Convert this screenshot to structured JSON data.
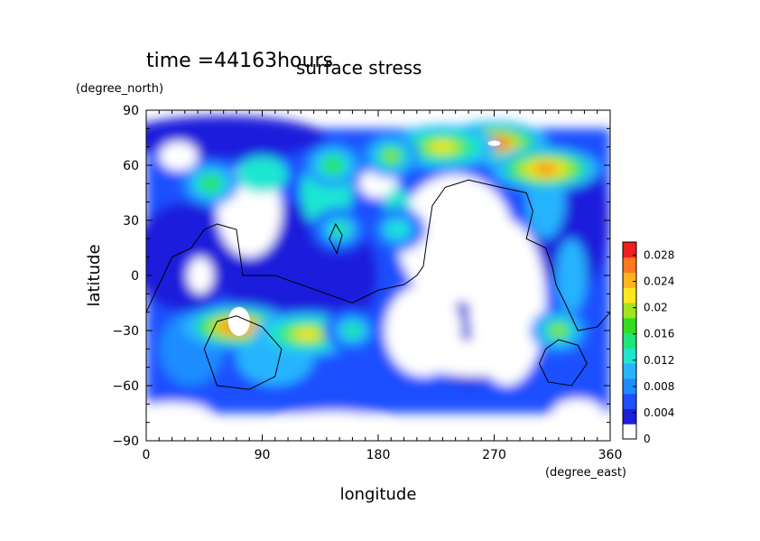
{
  "chart_data": {
    "type": "heatmap",
    "title": "surface stress",
    "subtitle": "time =44163hours",
    "xlabel": "longitude",
    "ylabel": "latitude",
    "x_unit": "(degree_east)",
    "y_unit": "(degree_north)",
    "xlim": [
      0,
      360
    ],
    "ylim": [
      -90,
      90
    ],
    "x_ticks": [
      "0",
      "90",
      "180",
      "270",
      "360"
    ],
    "y_ticks": [
      "90",
      "60",
      "30",
      "0",
      "−30",
      "−60",
      "−90"
    ],
    "colorbar": {
      "min": 0,
      "max": 0.03,
      "tick_labels": [
        "0",
        "0.004",
        "0.008",
        "0.012",
        "0.016",
        "0.02",
        "0.024",
        "0.028"
      ],
      "tick_values": [
        0,
        0.004,
        0.008,
        0.012,
        0.016,
        0.02,
        0.024,
        0.028
      ],
      "colors": [
        "#ffffff",
        "#1e1edc",
        "#1e50ff",
        "#1e8cff",
        "#28b4ff",
        "#1ee6d2",
        "#1ee678",
        "#32dc1e",
        "#a0e61e",
        "#ffe61e",
        "#ffb41e",
        "#ff781e",
        "#f01e1e"
      ]
    },
    "grid": false,
    "legend": "right",
    "features": [
      {
        "lon": 270,
        "lat": 72,
        "value": 0.028
      },
      {
        "lon": 230,
        "lat": 70,
        "value": 0.022
      },
      {
        "lon": 190,
        "lat": 65,
        "value": 0.018
      },
      {
        "lon": 310,
        "lat": 58,
        "value": 0.026
      },
      {
        "lon": 70,
        "lat": -28,
        "value": 0.027
      },
      {
        "lon": 125,
        "lat": -32,
        "value": 0.022
      },
      {
        "lon": 160,
        "lat": -30,
        "value": 0.014
      },
      {
        "lon": 50,
        "lat": 50,
        "value": 0.016
      },
      {
        "lon": 145,
        "lat": 60,
        "value": 0.016
      },
      {
        "lon": 320,
        "lat": -30,
        "value": 0.018
      },
      {
        "lon": 150,
        "lat": 25,
        "value": 0.014
      },
      {
        "lon": 195,
        "lat": 25,
        "value": 0.012
      }
    ]
  }
}
